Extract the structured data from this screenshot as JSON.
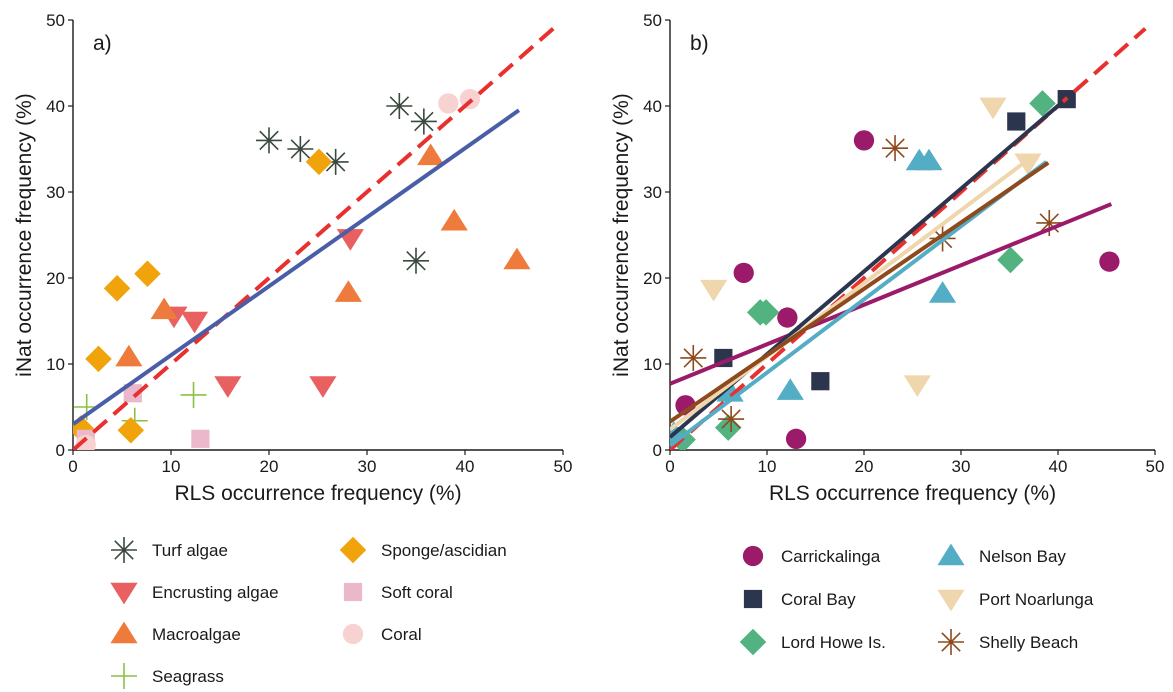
{
  "chart_data": [
    {
      "type": "scatter",
      "panel_label": "a)",
      "xlabel": "RLS occurrence frequency (%)",
      "ylabel": "iNat occurrence frequency (%)",
      "xlim": [
        0,
        50
      ],
      "ylim": [
        0,
        50
      ],
      "xticks": [
        "0",
        "10",
        "20",
        "30",
        "40",
        "50"
      ],
      "yticks": [
        "0",
        "10",
        "20",
        "30",
        "40",
        "50"
      ],
      "grid": false,
      "legend_position": "below",
      "series": [
        {
          "name": "Turf algae",
          "marker": "asterisk",
          "color": "#3a4a3f",
          "points": [
            [
              20,
              36
            ],
            [
              23.2,
              35
            ],
            [
              26.8,
              33.5
            ],
            [
              33.3,
              40
            ],
            [
              35.8,
              38.2
            ],
            [
              35,
              22
            ]
          ]
        },
        {
          "name": "Encrusting algae",
          "marker": "triangle-down",
          "color": "#e8605f",
          "points": [
            [
              10.3,
              15.6
            ],
            [
              12.4,
              15
            ],
            [
              15.8,
              7.5
            ],
            [
              25.5,
              7.5
            ],
            [
              28.3,
              24.6
            ]
          ]
        },
        {
          "name": "Macroalgae",
          "marker": "triangle-up",
          "color": "#ee7b3c",
          "points": [
            [
              5.7,
              10.8
            ],
            [
              9.3,
              16.3
            ],
            [
              28.1,
              18.3
            ],
            [
              36.5,
              34.2
            ],
            [
              38.9,
              26.6
            ],
            [
              45.3,
              22.1
            ]
          ]
        },
        {
          "name": "Seagrass",
          "marker": "plus",
          "color": "#8dbf45",
          "points": [
            [
              1.4,
              5
            ],
            [
              6.3,
              3.4
            ],
            [
              12.3,
              6.4
            ]
          ]
        },
        {
          "name": "Sponge/ascidian",
          "marker": "diamond",
          "color": "#f0a30a",
          "points": [
            [
              0.8,
              2.5
            ],
            [
              2.6,
              10.6
            ],
            [
              4.5,
              18.8
            ],
            [
              7.6,
              20.5
            ],
            [
              5.9,
              2.3
            ],
            [
              25.1,
              33.5
            ]
          ]
        },
        {
          "name": "Soft coral",
          "marker": "square",
          "color": "#eab8ca",
          "points": [
            [
              1.3,
              1.3
            ],
            [
              6.1,
              6.6
            ],
            [
              13,
              1.3
            ]
          ]
        },
        {
          "name": "Coral",
          "marker": "circle",
          "color": "#f7d2d0",
          "points": [
            [
              1.3,
              0.6
            ],
            [
              38.3,
              40.3
            ],
            [
              40.5,
              40.8
            ]
          ]
        }
      ],
      "lines": [
        {
          "style": "dashed",
          "color": "#e8312e",
          "from": [
            0,
            0
          ],
          "to": [
            49,
            49
          ]
        },
        {
          "style": "solid",
          "color": "#4a5ea8",
          "from": [
            0,
            3
          ],
          "to": [
            45.5,
            39.5
          ]
        }
      ]
    },
    {
      "type": "scatter",
      "panel_label": "b)",
      "xlabel": "RLS occurrence frequency (%)",
      "ylabel": "iNat occurrence frequency (%)",
      "xlim": [
        0,
        50
      ],
      "ylim": [
        0,
        50
      ],
      "xticks": [
        "0",
        "10",
        "20",
        "30",
        "40",
        "50"
      ],
      "yticks": [
        "0",
        "10",
        "20",
        "30",
        "40",
        "50"
      ],
      "grid": false,
      "legend_position": "below",
      "series": [
        {
          "name": "Carrickalinga",
          "marker": "circle",
          "color": "#9c1a6a",
          "points": [
            [
              1.6,
              5.2
            ],
            [
              7.6,
              20.6
            ],
            [
              12.1,
              15.4
            ],
            [
              13,
              1.3
            ],
            [
              20,
              36
            ],
            [
              45.3,
              21.9
            ]
          ]
        },
        {
          "name": "Coral Bay",
          "marker": "square",
          "color": "#2b354d",
          "points": [
            [
              0.2,
              1.6
            ],
            [
              5.5,
              10.7
            ],
            [
              15.5,
              8
            ],
            [
              35.7,
              38.2
            ],
            [
              40.9,
              40.8
            ]
          ]
        },
        {
          "name": "Lord Howe Is.",
          "marker": "diamond",
          "color": "#52b381",
          "points": [
            [
              1.3,
              1.2
            ],
            [
              6,
              2.6
            ],
            [
              9.3,
              16
            ],
            [
              9.9,
              16
            ],
            [
              35.1,
              22.1
            ],
            [
              38.4,
              40.3
            ]
          ]
        },
        {
          "name": "Nelson Bay",
          "marker": "triangle-up",
          "color": "#53adc4",
          "points": [
            [
              0.4,
              1.9
            ],
            [
              6.2,
              6.7
            ],
            [
              12.4,
              6.9
            ],
            [
              25.7,
              33.6
            ],
            [
              26.7,
              33.6
            ],
            [
              28.1,
              18.2
            ]
          ]
        },
        {
          "name": "Port Noarlunga",
          "marker": "triangle-down",
          "color": "#efd6ac",
          "points": [
            [
              4.5,
              18.7
            ],
            [
              25.5,
              7.6
            ],
            [
              33.3,
              39.9
            ],
            [
              36.9,
              33.4
            ]
          ]
        },
        {
          "name": "Shelly Beach",
          "marker": "asterisk",
          "color": "#8e4a1c",
          "points": [
            [
              2.4,
              10.7
            ],
            [
              6.3,
              3.6
            ],
            [
              23.2,
              35.1
            ],
            [
              28.1,
              24.6
            ],
            [
              39.1,
              26.4
            ]
          ]
        }
      ],
      "lines": [
        {
          "style": "dashed",
          "color": "#e8312e",
          "from": [
            0,
            0
          ],
          "to": [
            49,
            49
          ]
        },
        {
          "style": "solid",
          "color": "#9c1a6a",
          "from": [
            0,
            7.7
          ],
          "to": [
            45.5,
            28.6
          ]
        },
        {
          "style": "solid",
          "color": "#2b354d",
          "from": [
            0,
            1.5
          ],
          "to": [
            40.5,
            40.5
          ]
        },
        {
          "style": "solid",
          "color": "#53adc4",
          "from": [
            0,
            0.5
          ],
          "to": [
            38.8,
            33.5
          ]
        },
        {
          "style": "solid",
          "color": "#efd6ac",
          "from": [
            0,
            2.4
          ],
          "to": [
            37.2,
            34
          ]
        },
        {
          "style": "solid",
          "color": "#8e4a1c",
          "from": [
            0,
            3.3
          ],
          "to": [
            39,
            33.4
          ]
        }
      ]
    }
  ]
}
